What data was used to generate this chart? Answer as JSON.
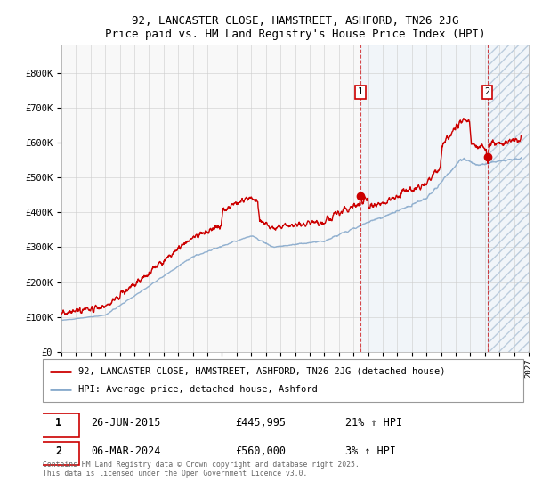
{
  "title_line1": "92, LANCASTER CLOSE, HAMSTREET, ASHFORD, TN26 2JG",
  "title_line2": "Price paid vs. HM Land Registry's House Price Index (HPI)",
  "xlim_start": 1995.0,
  "xlim_end": 2027.0,
  "ylim_min": 0,
  "ylim_max": 880000,
  "yticks": [
    0,
    100000,
    200000,
    300000,
    400000,
    500000,
    600000,
    700000,
    800000
  ],
  "ytick_labels": [
    "£0",
    "£100K",
    "£200K",
    "£300K",
    "£400K",
    "£500K",
    "£600K",
    "£700K",
    "£800K"
  ],
  "property_color": "#cc0000",
  "hpi_color": "#88aacc",
  "trans1_year": 2015.49,
  "trans1_price": 445995,
  "trans2_year": 2024.18,
  "trans2_price": 560000,
  "legend_property": "92, LANCASTER CLOSE, HAMSTREET, ASHFORD, TN26 2JG (detached house)",
  "legend_hpi": "HPI: Average price, detached house, Ashford",
  "footnote": "Contains HM Land Registry data © Crown copyright and database right 2025.\nThis data is licensed under the Open Government Licence v3.0.",
  "plot_bg_color": "#f8f8f8",
  "grid_color": "#cccccc",
  "shade_color": "#ddeeff",
  "hatch_color": "#bbccdd"
}
